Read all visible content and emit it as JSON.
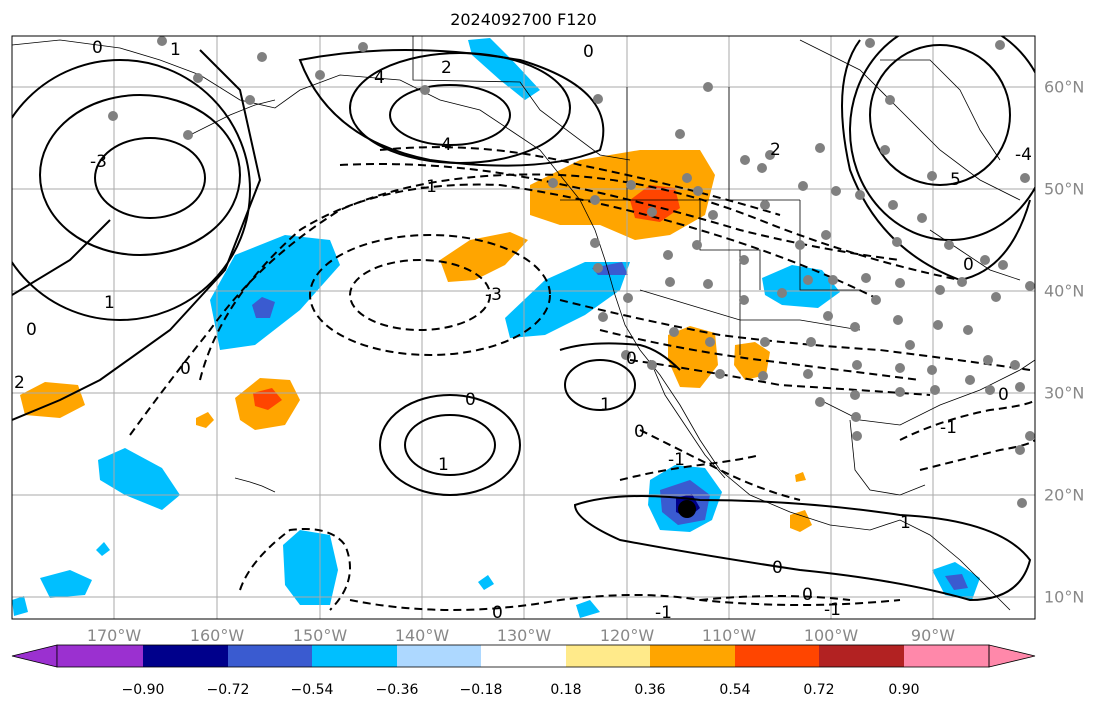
{
  "title": "2024092700 F120",
  "map": {
    "lon_labels": [
      "170°W",
      "160°W",
      "150°W",
      "140°W",
      "130°W",
      "120°W",
      "110°W",
      "100°W",
      "90°W"
    ],
    "lat_labels": [
      "60°N",
      "50°N",
      "40°N",
      "30°N",
      "20°N",
      "10°N"
    ],
    "contour_labels": [
      "0",
      "1",
      "2",
      "3",
      "4",
      "-1",
      "-2",
      "-3",
      "5",
      "-4"
    ],
    "colors": {
      "grid": "#aaaaaa",
      "land": "#000000",
      "station": "#808080"
    }
  },
  "colorbar": {
    "ticks": [
      "−0.90",
      "−0.72",
      "−0.54",
      "−0.36",
      "−0.18",
      "0.18",
      "0.36",
      "0.54",
      "0.72",
      "0.90"
    ],
    "colors": [
      "#9b30d0",
      "#00008b",
      "#3a5bd0",
      "#00bfff",
      "#add8ff",
      "#ffffff",
      "#ffea8a",
      "#ffa500",
      "#ff4500",
      "#b22222",
      "#ff88aa"
    ]
  }
}
